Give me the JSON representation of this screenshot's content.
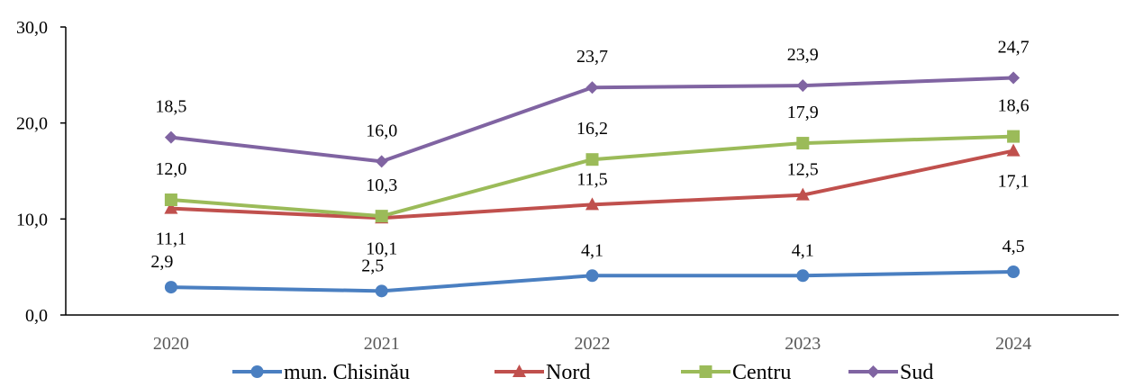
{
  "chart_data": {
    "type": "line",
    "title": "",
    "xlabel": "",
    "ylabel": "",
    "categories": [
      "2020",
      "2021",
      "2022",
      "2023",
      "2024"
    ],
    "ylim": [
      0,
      30
    ],
    "yticks": [
      0,
      10,
      20,
      30
    ],
    "ytick_labels": [
      "0,0",
      "10,0",
      "20,0",
      "30,0"
    ],
    "grid": false,
    "legend_position": "bottom",
    "series": [
      {
        "name": "mun. Chisinău",
        "color": "#4a7fc1",
        "marker": "circle",
        "values": [
          2.9,
          2.5,
          4.1,
          4.1,
          4.5
        ],
        "labels": [
          "2,9",
          "2,5",
          "4,1",
          "4,1",
          "4,5"
        ]
      },
      {
        "name": "Nord",
        "color": "#c0504d",
        "marker": "triangle",
        "values": [
          11.1,
          10.1,
          11.5,
          12.5,
          17.1
        ],
        "labels": [
          "11,1",
          "10,1",
          "11,5",
          "12,5",
          "17,1"
        ]
      },
      {
        "name": "Centru",
        "color": "#9bbb59",
        "marker": "square",
        "values": [
          12.0,
          10.3,
          16.2,
          17.9,
          18.6
        ],
        "labels": [
          "12,0",
          "10,3",
          "16,2",
          "17,9",
          "18,6"
        ]
      },
      {
        "name": "Sud",
        "color": "#8064a2",
        "marker": "diamond",
        "values": [
          18.5,
          16.0,
          23.7,
          23.9,
          24.7
        ],
        "labels": [
          "18,5",
          "16,0",
          "23,7",
          "23,9",
          "24,7"
        ]
      }
    ]
  }
}
